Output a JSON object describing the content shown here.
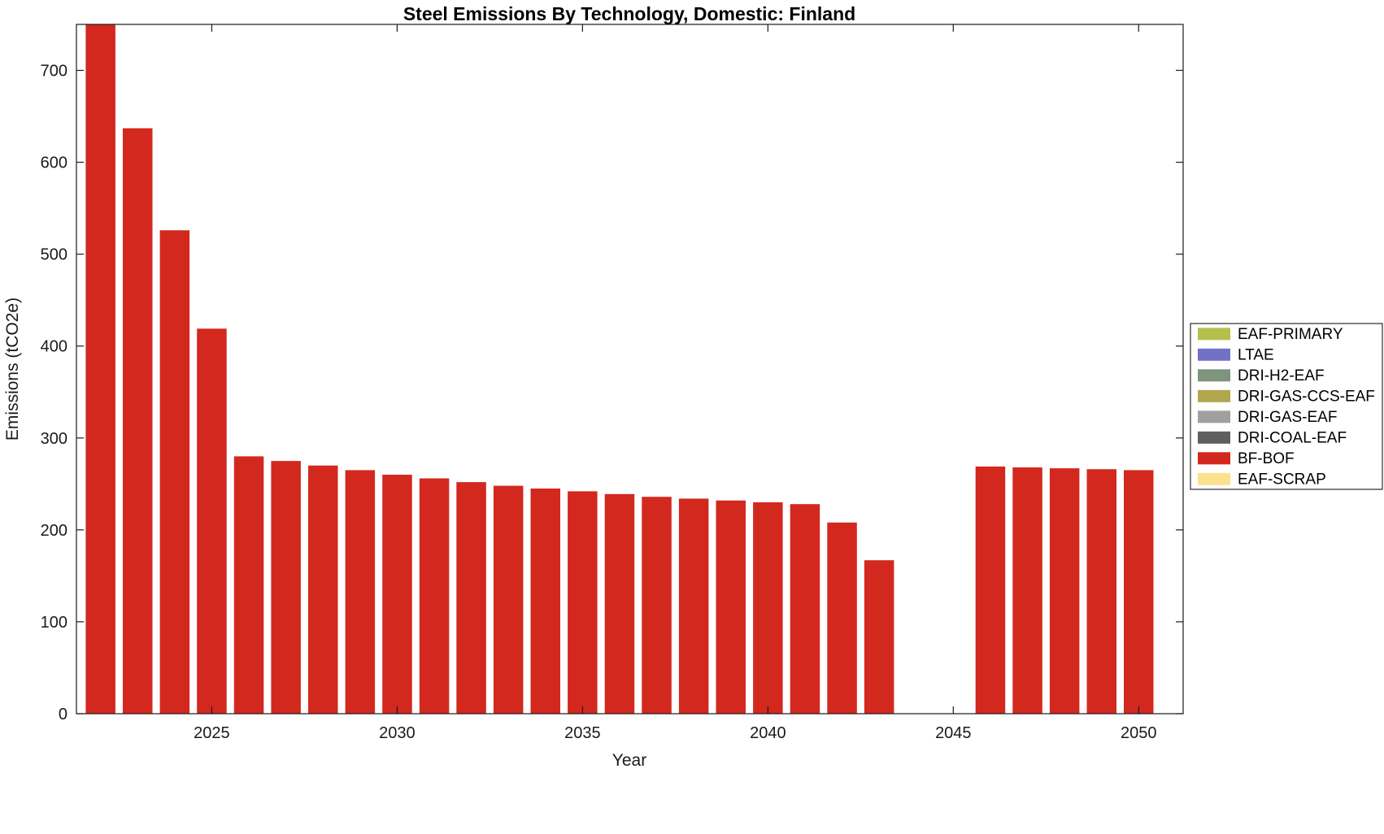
{
  "chart_data": {
    "type": "bar",
    "title": "Steel Emissions By Technology, Domestic: Finland",
    "xlabel": "Year",
    "ylabel": "Emissions (tCO2e)",
    "xlim": [
      2021.35,
      2051.2
    ],
    "ylim": [
      0,
      750
    ],
    "yticks": [
      0,
      100,
      200,
      300,
      400,
      500,
      600,
      700
    ],
    "xticks": [
      2025,
      2030,
      2035,
      2040,
      2045,
      2050
    ],
    "grid": false,
    "legend_position": "right-outside",
    "categories": [
      2022,
      2023,
      2024,
      2025,
      2026,
      2027,
      2028,
      2029,
      2030,
      2031,
      2032,
      2033,
      2034,
      2035,
      2036,
      2037,
      2038,
      2039,
      2040,
      2041,
      2042,
      2043,
      2044,
      2045,
      2046,
      2047,
      2048,
      2049,
      2050
    ],
    "series": [
      {
        "name": "BF-BOF",
        "color": "#d3281e",
        "values": [
          750,
          637,
          526,
          419,
          280,
          275,
          270,
          265,
          260,
          256,
          252,
          248,
          245,
          242,
          239,
          236,
          234,
          232,
          230,
          228,
          208,
          167,
          0,
          0,
          269,
          268,
          267,
          266,
          265
        ]
      }
    ],
    "legend": [
      {
        "label": "EAF-PRIMARY",
        "color": "#b3c04b"
      },
      {
        "label": "LTAE",
        "color": "#7172c5"
      },
      {
        "label": "DRI-H2-EAF",
        "color": "#7e947d"
      },
      {
        "label": "DRI-GAS-CCS-EAF",
        "color": "#b1a54e"
      },
      {
        "label": "DRI-GAS-EAF",
        "color": "#a0a0a0"
      },
      {
        "label": "DRI-COAL-EAF",
        "color": "#5f5f5f"
      },
      {
        "label": "BF-BOF",
        "color": "#d3281e"
      },
      {
        "label": "EAF-SCRAP",
        "color": "#fbe18d"
      }
    ]
  }
}
